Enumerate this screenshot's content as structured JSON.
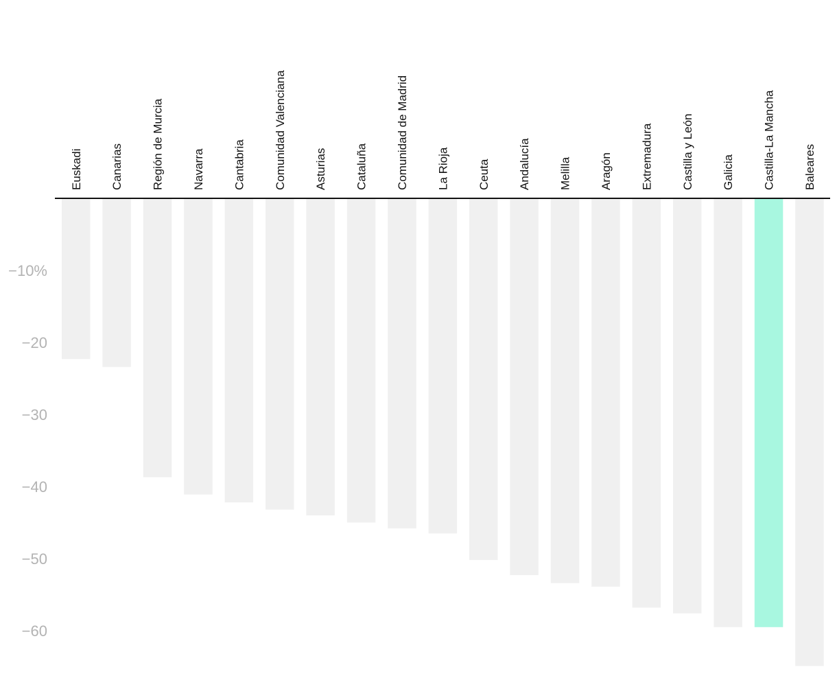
{
  "chart_data": {
    "type": "bar",
    "orientation": "vertical-down",
    "categories": [
      "Euskadi",
      "Canarias",
      "Región de Murcia",
      "Navarra",
      "Cantabria",
      "Comunidad Valenciana",
      "Asturias",
      "Cataluña",
      "Comunidad de Madrid",
      "La Rioja",
      "Ceuta",
      "Andalucía",
      "Melilla",
      "Aragón",
      "Extremadura",
      "Castilla y León",
      "Galicia",
      "Castilla-La Mancha",
      "Baleares"
    ],
    "values": [
      -22.3,
      -23.4,
      -38.7,
      -41.1,
      -42.2,
      -43.2,
      -44.0,
      -45.0,
      -45.8,
      -46.5,
      -50.2,
      -52.3,
      -53.4,
      -53.9,
      -56.8,
      -57.6,
      -59.5,
      -59.5,
      -64.9
    ],
    "highlight": "Castilla-La Mancha",
    "ylim": [
      0,
      -65
    ],
    "yticks": [
      -10,
      -20,
      -30,
      -40,
      -50,
      -60
    ],
    "ytick_labels": [
      "−10%",
      "−20",
      "−30",
      "−40",
      "−50",
      "−60"
    ],
    "title": "",
    "xlabel": "",
    "ylabel": "",
    "colors": {
      "bar": "#f0f0f0",
      "highlight": "#a8f7e0",
      "axis": "#111111",
      "tick": "#b3b3b3",
      "label": "#111111"
    }
  }
}
